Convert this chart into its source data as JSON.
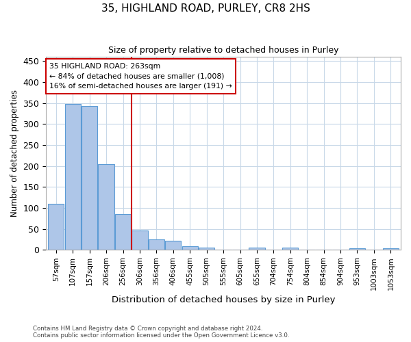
{
  "title_line1": "35, HIGHLAND ROAD, PURLEY, CR8 2HS",
  "title_line2": "Size of property relative to detached houses in Purley",
  "xlabel": "Distribution of detached houses by size in Purley",
  "ylabel": "Number of detached properties",
  "bar_labels": [
    "57sqm",
    "107sqm",
    "157sqm",
    "206sqm",
    "256sqm",
    "306sqm",
    "356sqm",
    "406sqm",
    "455sqm",
    "505sqm",
    "555sqm",
    "605sqm",
    "655sqm",
    "704sqm",
    "754sqm",
    "804sqm",
    "854sqm",
    "904sqm",
    "953sqm",
    "1003sqm",
    "1053sqm"
  ],
  "bar_heights": [
    110,
    348,
    343,
    204,
    85,
    46,
    25,
    22,
    9,
    6,
    0,
    0,
    6,
    0,
    6,
    0,
    0,
    0,
    3,
    0,
    3
  ],
  "bar_color": "#aec6e8",
  "bar_edge_color": "#5b9bd5",
  "annotation_line1": "35 HIGHLAND ROAD: 263sqm",
  "annotation_line2": "← 84% of detached houses are smaller (1,008)",
  "annotation_line3": "16% of semi-detached houses are larger (191) →",
  "red_line_color": "#cc0000",
  "annotation_box_edge_color": "#cc0000",
  "background_color": "#ffffff",
  "grid_color": "#c8d8e8",
  "ylim": [
    0,
    460
  ],
  "yticks": [
    0,
    50,
    100,
    150,
    200,
    250,
    300,
    350,
    400,
    450
  ],
  "footnote_line1": "Contains HM Land Registry data © Crown copyright and database right 2024.",
  "footnote_line2": "Contains public sector information licensed under the Open Government Licence v3.0."
}
